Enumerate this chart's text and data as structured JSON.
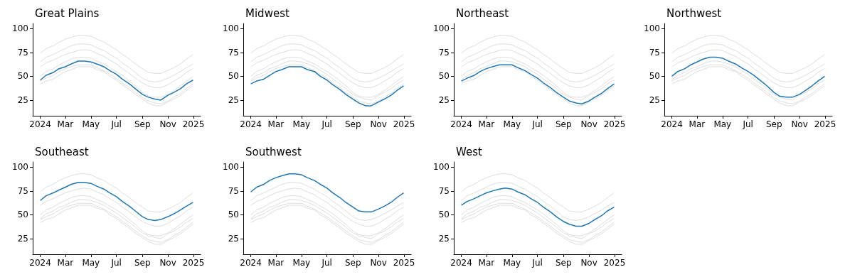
{
  "chart_data": [
    {
      "type": "line",
      "title": "Great Plains",
      "marker": "none",
      "xlim": [
        "2023-12-14",
        "2025-01-18"
      ],
      "ylim": [
        8.5,
        105.5
      ],
      "yticks": [
        25,
        50,
        75,
        100
      ],
      "xticks": [
        {
          "value": "2024-01-01",
          "label": "2024"
        },
        {
          "value": "2024-03-01",
          "label": "Mar"
        },
        {
          "value": "2024-05-01",
          "label": "May"
        },
        {
          "value": "2024-07-01",
          "label": "Jul"
        },
        {
          "value": "2024-09-01",
          "label": "Sep"
        },
        {
          "value": "2024-11-01",
          "label": "Nov"
        },
        {
          "value": "2025-01-01",
          "label": "2025"
        }
      ],
      "x": [
        "2024-01-01",
        "2024-01-15",
        "2024-02-01",
        "2024-02-15",
        "2024-03-01",
        "2024-03-15",
        "2024-04-01",
        "2024-04-15",
        "2024-05-01",
        "2024-05-15",
        "2024-06-01",
        "2024-06-15",
        "2024-07-01",
        "2024-07-15",
        "2024-08-01",
        "2024-08-15",
        "2024-09-01",
        "2024-09-15",
        "2024-10-01",
        "2024-10-15",
        "2024-11-01",
        "2024-11-15",
        "2024-12-01",
        "2024-12-15",
        "2024-12-31"
      ],
      "series": [
        {
          "color": "#dddddd",
          "values": [
            42,
            45,
            47,
            51,
            55,
            57,
            60,
            60,
            60,
            57,
            55,
            50,
            46,
            41,
            36,
            31,
            26,
            22,
            19,
            19,
            23,
            26,
            30,
            35,
            40
          ]
        },
        {
          "color": "#dddddd",
          "values": [
            45,
            48,
            51,
            55,
            58,
            60,
            62,
            62,
            62,
            59,
            56,
            52,
            48,
            43,
            38,
            33,
            28,
            24,
            22,
            21,
            24,
            28,
            32,
            37,
            42
          ]
        },
        {
          "color": "#dddddd",
          "values": [
            50,
            55,
            58,
            62,
            65,
            68,
            70,
            70,
            69,
            66,
            63,
            59,
            55,
            51,
            45,
            40,
            33,
            29,
            28,
            28,
            31,
            35,
            40,
            45,
            50
          ]
        },
        {
          "color": "#dddddd",
          "values": [
            65,
            70,
            73,
            76,
            79,
            82,
            84,
            84,
            83,
            80,
            77,
            73,
            69,
            64,
            59,
            54,
            48,
            45,
            44,
            45,
            48,
            51,
            55,
            59,
            63
          ]
        },
        {
          "color": "#dddddd",
          "values": [
            74,
            79,
            82,
            86,
            89,
            91,
            93,
            93,
            92,
            89,
            86,
            82,
            78,
            73,
            68,
            63,
            58,
            54,
            53,
            53,
            56,
            59,
            63,
            68,
            73
          ]
        },
        {
          "color": "#dddddd",
          "values": [
            60,
            64,
            67,
            70,
            73,
            75,
            77,
            78,
            77,
            74,
            71,
            67,
            63,
            58,
            53,
            48,
            43,
            40,
            38,
            38,
            41,
            45,
            49,
            54,
            58
          ]
        },
        {
          "color": "#1f77b4",
          "values": [
            46,
            51,
            54,
            58,
            60,
            63,
            66,
            66,
            65,
            63,
            60,
            56,
            52,
            47,
            42,
            37,
            31,
            28,
            26,
            25,
            30,
            33,
            37,
            42,
            46
          ]
        }
      ]
    },
    {
      "type": "line",
      "title": "Midwest",
      "marker": "none",
      "xlim": [
        "2023-12-14",
        "2025-01-18"
      ],
      "ylim": [
        8.5,
        105.5
      ],
      "yticks": [
        25,
        50,
        75,
        100
      ],
      "xticks": [
        {
          "value": "2024-01-01",
          "label": "2024"
        },
        {
          "value": "2024-03-01",
          "label": "Mar"
        },
        {
          "value": "2024-05-01",
          "label": "May"
        },
        {
          "value": "2024-07-01",
          "label": "Jul"
        },
        {
          "value": "2024-09-01",
          "label": "Sep"
        },
        {
          "value": "2024-11-01",
          "label": "Nov"
        },
        {
          "value": "2025-01-01",
          "label": "2025"
        }
      ],
      "x": [
        "2024-01-01",
        "2024-01-15",
        "2024-02-01",
        "2024-02-15",
        "2024-03-01",
        "2024-03-15",
        "2024-04-01",
        "2024-04-15",
        "2024-05-01",
        "2024-05-15",
        "2024-06-01",
        "2024-06-15",
        "2024-07-01",
        "2024-07-15",
        "2024-08-01",
        "2024-08-15",
        "2024-09-01",
        "2024-09-15",
        "2024-10-01",
        "2024-10-15",
        "2024-11-01",
        "2024-11-15",
        "2024-12-01",
        "2024-12-15",
        "2024-12-31"
      ],
      "series": [
        {
          "color": "#dddddd",
          "values": [
            46,
            51,
            54,
            58,
            60,
            63,
            66,
            66,
            65,
            63,
            60,
            56,
            52,
            47,
            42,
            37,
            31,
            28,
            26,
            25,
            30,
            33,
            37,
            42,
            46
          ]
        },
        {
          "color": "#dddddd",
          "values": [
            45,
            48,
            51,
            55,
            58,
            60,
            62,
            62,
            62,
            59,
            56,
            52,
            48,
            43,
            38,
            33,
            28,
            24,
            22,
            21,
            24,
            28,
            32,
            37,
            42
          ]
        },
        {
          "color": "#dddddd",
          "values": [
            50,
            55,
            58,
            62,
            65,
            68,
            70,
            70,
            69,
            66,
            63,
            59,
            55,
            51,
            45,
            40,
            33,
            29,
            28,
            28,
            31,
            35,
            40,
            45,
            50
          ]
        },
        {
          "color": "#dddddd",
          "values": [
            65,
            70,
            73,
            76,
            79,
            82,
            84,
            84,
            83,
            80,
            77,
            73,
            69,
            64,
            59,
            54,
            48,
            45,
            44,
            45,
            48,
            51,
            55,
            59,
            63
          ]
        },
        {
          "color": "#dddddd",
          "values": [
            74,
            79,
            82,
            86,
            89,
            91,
            93,
            93,
            92,
            89,
            86,
            82,
            78,
            73,
            68,
            63,
            58,
            54,
            53,
            53,
            56,
            59,
            63,
            68,
            73
          ]
        },
        {
          "color": "#dddddd",
          "values": [
            60,
            64,
            67,
            70,
            73,
            75,
            77,
            78,
            77,
            74,
            71,
            67,
            63,
            58,
            53,
            48,
            43,
            40,
            38,
            38,
            41,
            45,
            49,
            54,
            58
          ]
        },
        {
          "color": "#1f77b4",
          "values": [
            42,
            45,
            47,
            51,
            55,
            57,
            60,
            60,
            60,
            57,
            55,
            50,
            46,
            41,
            36,
            31,
            26,
            22,
            19,
            19,
            23,
            26,
            30,
            35,
            40
          ]
        }
      ]
    },
    {
      "type": "line",
      "title": "Northeast",
      "marker": "none",
      "xlim": [
        "2023-12-14",
        "2025-01-18"
      ],
      "ylim": [
        8.5,
        105.5
      ],
      "yticks": [
        25,
        50,
        75,
        100
      ],
      "xticks": [
        {
          "value": "2024-01-01",
          "label": "2024"
        },
        {
          "value": "2024-03-01",
          "label": "Mar"
        },
        {
          "value": "2024-05-01",
          "label": "May"
        },
        {
          "value": "2024-07-01",
          "label": "Jul"
        },
        {
          "value": "2024-09-01",
          "label": "Sep"
        },
        {
          "value": "2024-11-01",
          "label": "Nov"
        },
        {
          "value": "2025-01-01",
          "label": "2025"
        }
      ],
      "x": [
        "2024-01-01",
        "2024-01-15",
        "2024-02-01",
        "2024-02-15",
        "2024-03-01",
        "2024-03-15",
        "2024-04-01",
        "2024-04-15",
        "2024-05-01",
        "2024-05-15",
        "2024-06-01",
        "2024-06-15",
        "2024-07-01",
        "2024-07-15",
        "2024-08-01",
        "2024-08-15",
        "2024-09-01",
        "2024-09-15",
        "2024-10-01",
        "2024-10-15",
        "2024-11-01",
        "2024-11-15",
        "2024-12-01",
        "2024-12-15",
        "2024-12-31"
      ],
      "series": [
        {
          "color": "#dddddd",
          "values": [
            46,
            51,
            54,
            58,
            60,
            63,
            66,
            66,
            65,
            63,
            60,
            56,
            52,
            47,
            42,
            37,
            31,
            28,
            26,
            25,
            30,
            33,
            37,
            42,
            46
          ]
        },
        {
          "color": "#dddddd",
          "values": [
            42,
            45,
            47,
            51,
            55,
            57,
            60,
            60,
            60,
            57,
            55,
            50,
            46,
            41,
            36,
            31,
            26,
            22,
            19,
            19,
            23,
            26,
            30,
            35,
            40
          ]
        },
        {
          "color": "#dddddd",
          "values": [
            50,
            55,
            58,
            62,
            65,
            68,
            70,
            70,
            69,
            66,
            63,
            59,
            55,
            51,
            45,
            40,
            33,
            29,
            28,
            28,
            31,
            35,
            40,
            45,
            50
          ]
        },
        {
          "color": "#dddddd",
          "values": [
            65,
            70,
            73,
            76,
            79,
            82,
            84,
            84,
            83,
            80,
            77,
            73,
            69,
            64,
            59,
            54,
            48,
            45,
            44,
            45,
            48,
            51,
            55,
            59,
            63
          ]
        },
        {
          "color": "#dddddd",
          "values": [
            74,
            79,
            82,
            86,
            89,
            91,
            93,
            93,
            92,
            89,
            86,
            82,
            78,
            73,
            68,
            63,
            58,
            54,
            53,
            53,
            56,
            59,
            63,
            68,
            73
          ]
        },
        {
          "color": "#dddddd",
          "values": [
            60,
            64,
            67,
            70,
            73,
            75,
            77,
            78,
            77,
            74,
            71,
            67,
            63,
            58,
            53,
            48,
            43,
            40,
            38,
            38,
            41,
            45,
            49,
            54,
            58
          ]
        },
        {
          "color": "#1f77b4",
          "values": [
            45,
            48,
            51,
            55,
            58,
            60,
            62,
            62,
            62,
            59,
            56,
            52,
            48,
            43,
            38,
            33,
            28,
            24,
            22,
            21,
            24,
            28,
            32,
            37,
            42
          ]
        }
      ]
    },
    {
      "type": "line",
      "title": "Northwest",
      "marker": "none",
      "xlim": [
        "2023-12-14",
        "2025-01-18"
      ],
      "ylim": [
        8.5,
        105.5
      ],
      "yticks": [
        25,
        50,
        75,
        100
      ],
      "xticks": [
        {
          "value": "2024-01-01",
          "label": "2024"
        },
        {
          "value": "2024-03-01",
          "label": "Mar"
        },
        {
          "value": "2024-05-01",
          "label": "May"
        },
        {
          "value": "2024-07-01",
          "label": "Jul"
        },
        {
          "value": "2024-09-01",
          "label": "Sep"
        },
        {
          "value": "2024-11-01",
          "label": "Nov"
        },
        {
          "value": "2025-01-01",
          "label": "2025"
        }
      ],
      "x": [
        "2024-01-01",
        "2024-01-15",
        "2024-02-01",
        "2024-02-15",
        "2024-03-01",
        "2024-03-15",
        "2024-04-01",
        "2024-04-15",
        "2024-05-01",
        "2024-05-15",
        "2024-06-01",
        "2024-06-15",
        "2024-07-01",
        "2024-07-15",
        "2024-08-01",
        "2024-08-15",
        "2024-09-01",
        "2024-09-15",
        "2024-10-01",
        "2024-10-15",
        "2024-11-01",
        "2024-11-15",
        "2024-12-01",
        "2024-12-15",
        "2024-12-31"
      ],
      "series": [
        {
          "color": "#dddddd",
          "values": [
            46,
            51,
            54,
            58,
            60,
            63,
            66,
            66,
            65,
            63,
            60,
            56,
            52,
            47,
            42,
            37,
            31,
            28,
            26,
            25,
            30,
            33,
            37,
            42,
            46
          ]
        },
        {
          "color": "#dddddd",
          "values": [
            42,
            45,
            47,
            51,
            55,
            57,
            60,
            60,
            60,
            57,
            55,
            50,
            46,
            41,
            36,
            31,
            26,
            22,
            19,
            19,
            23,
            26,
            30,
            35,
            40
          ]
        },
        {
          "color": "#dddddd",
          "values": [
            45,
            48,
            51,
            55,
            58,
            60,
            62,
            62,
            62,
            59,
            56,
            52,
            48,
            43,
            38,
            33,
            28,
            24,
            22,
            21,
            24,
            28,
            32,
            37,
            42
          ]
        },
        {
          "color": "#dddddd",
          "values": [
            65,
            70,
            73,
            76,
            79,
            82,
            84,
            84,
            83,
            80,
            77,
            73,
            69,
            64,
            59,
            54,
            48,
            45,
            44,
            45,
            48,
            51,
            55,
            59,
            63
          ]
        },
        {
          "color": "#dddddd",
          "values": [
            74,
            79,
            82,
            86,
            89,
            91,
            93,
            93,
            92,
            89,
            86,
            82,
            78,
            73,
            68,
            63,
            58,
            54,
            53,
            53,
            56,
            59,
            63,
            68,
            73
          ]
        },
        {
          "color": "#dddddd",
          "values": [
            60,
            64,
            67,
            70,
            73,
            75,
            77,
            78,
            77,
            74,
            71,
            67,
            63,
            58,
            53,
            48,
            43,
            40,
            38,
            38,
            41,
            45,
            49,
            54,
            58
          ]
        },
        {
          "color": "#1f77b4",
          "values": [
            50,
            55,
            58,
            62,
            65,
            68,
            70,
            70,
            69,
            66,
            63,
            59,
            55,
            51,
            45,
            40,
            33,
            29,
            28,
            28,
            31,
            35,
            40,
            45,
            50
          ]
        }
      ]
    },
    {
      "type": "line",
      "title": "Southeast",
      "marker": "none",
      "xlim": [
        "2023-12-14",
        "2025-01-18"
      ],
      "ylim": [
        8.5,
        105.5
      ],
      "yticks": [
        25,
        50,
        75,
        100
      ],
      "xticks": [
        {
          "value": "2024-01-01",
          "label": "2024"
        },
        {
          "value": "2024-03-01",
          "label": "Mar"
        },
        {
          "value": "2024-05-01",
          "label": "May"
        },
        {
          "value": "2024-07-01",
          "label": "Jul"
        },
        {
          "value": "2024-09-01",
          "label": "Sep"
        },
        {
          "value": "2024-11-01",
          "label": "Nov"
        },
        {
          "value": "2025-01-01",
          "label": "2025"
        }
      ],
      "x": [
        "2024-01-01",
        "2024-01-15",
        "2024-02-01",
        "2024-02-15",
        "2024-03-01",
        "2024-03-15",
        "2024-04-01",
        "2024-04-15",
        "2024-05-01",
        "2024-05-15",
        "2024-06-01",
        "2024-06-15",
        "2024-07-01",
        "2024-07-15",
        "2024-08-01",
        "2024-08-15",
        "2024-09-01",
        "2024-09-15",
        "2024-10-01",
        "2024-10-15",
        "2024-11-01",
        "2024-11-15",
        "2024-12-01",
        "2024-12-15",
        "2024-12-31"
      ],
      "series": [
        {
          "color": "#dddddd",
          "values": [
            46,
            51,
            54,
            58,
            60,
            63,
            66,
            66,
            65,
            63,
            60,
            56,
            52,
            47,
            42,
            37,
            31,
            28,
            26,
            25,
            30,
            33,
            37,
            42,
            46
          ]
        },
        {
          "color": "#dddddd",
          "values": [
            42,
            45,
            47,
            51,
            55,
            57,
            60,
            60,
            60,
            57,
            55,
            50,
            46,
            41,
            36,
            31,
            26,
            22,
            19,
            19,
            23,
            26,
            30,
            35,
            40
          ]
        },
        {
          "color": "#dddddd",
          "values": [
            45,
            48,
            51,
            55,
            58,
            60,
            62,
            62,
            62,
            59,
            56,
            52,
            48,
            43,
            38,
            33,
            28,
            24,
            22,
            21,
            24,
            28,
            32,
            37,
            42
          ]
        },
        {
          "color": "#dddddd",
          "values": [
            50,
            55,
            58,
            62,
            65,
            68,
            70,
            70,
            69,
            66,
            63,
            59,
            55,
            51,
            45,
            40,
            33,
            29,
            28,
            28,
            31,
            35,
            40,
            45,
            50
          ]
        },
        {
          "color": "#dddddd",
          "values": [
            74,
            79,
            82,
            86,
            89,
            91,
            93,
            93,
            92,
            89,
            86,
            82,
            78,
            73,
            68,
            63,
            58,
            54,
            53,
            53,
            56,
            59,
            63,
            68,
            73
          ]
        },
        {
          "color": "#dddddd",
          "values": [
            60,
            64,
            67,
            70,
            73,
            75,
            77,
            78,
            77,
            74,
            71,
            67,
            63,
            58,
            53,
            48,
            43,
            40,
            38,
            38,
            41,
            45,
            49,
            54,
            58
          ]
        },
        {
          "color": "#1f77b4",
          "values": [
            65,
            70,
            73,
            76,
            79,
            82,
            84,
            84,
            83,
            80,
            77,
            73,
            69,
            64,
            59,
            54,
            48,
            45,
            44,
            45,
            48,
            51,
            55,
            59,
            63
          ]
        }
      ]
    },
    {
      "type": "line",
      "title": "Southwest",
      "marker": "none",
      "xlim": [
        "2023-12-14",
        "2025-01-18"
      ],
      "ylim": [
        8.5,
        105.5
      ],
      "yticks": [
        25,
        50,
        75,
        100
      ],
      "xticks": [
        {
          "value": "2024-01-01",
          "label": "2024"
        },
        {
          "value": "2024-03-01",
          "label": "Mar"
        },
        {
          "value": "2024-05-01",
          "label": "May"
        },
        {
          "value": "2024-07-01",
          "label": "Jul"
        },
        {
          "value": "2024-09-01",
          "label": "Sep"
        },
        {
          "value": "2024-11-01",
          "label": "Nov"
        },
        {
          "value": "2025-01-01",
          "label": "2025"
        }
      ],
      "x": [
        "2024-01-01",
        "2024-01-15",
        "2024-02-01",
        "2024-02-15",
        "2024-03-01",
        "2024-03-15",
        "2024-04-01",
        "2024-04-15",
        "2024-05-01",
        "2024-05-15",
        "2024-06-01",
        "2024-06-15",
        "2024-07-01",
        "2024-07-15",
        "2024-08-01",
        "2024-08-15",
        "2024-09-01",
        "2024-09-15",
        "2024-10-01",
        "2024-10-15",
        "2024-11-01",
        "2024-11-15",
        "2024-12-01",
        "2024-12-15",
        "2024-12-31"
      ],
      "series": [
        {
          "color": "#dddddd",
          "values": [
            46,
            51,
            54,
            58,
            60,
            63,
            66,
            66,
            65,
            63,
            60,
            56,
            52,
            47,
            42,
            37,
            31,
            28,
            26,
            25,
            30,
            33,
            37,
            42,
            46
          ]
        },
        {
          "color": "#dddddd",
          "values": [
            42,
            45,
            47,
            51,
            55,
            57,
            60,
            60,
            60,
            57,
            55,
            50,
            46,
            41,
            36,
            31,
            26,
            22,
            19,
            19,
            23,
            26,
            30,
            35,
            40
          ]
        },
        {
          "color": "#dddddd",
          "values": [
            45,
            48,
            51,
            55,
            58,
            60,
            62,
            62,
            62,
            59,
            56,
            52,
            48,
            43,
            38,
            33,
            28,
            24,
            22,
            21,
            24,
            28,
            32,
            37,
            42
          ]
        },
        {
          "color": "#dddddd",
          "values": [
            50,
            55,
            58,
            62,
            65,
            68,
            70,
            70,
            69,
            66,
            63,
            59,
            55,
            51,
            45,
            40,
            33,
            29,
            28,
            28,
            31,
            35,
            40,
            45,
            50
          ]
        },
        {
          "color": "#dddddd",
          "values": [
            65,
            70,
            73,
            76,
            79,
            82,
            84,
            84,
            83,
            80,
            77,
            73,
            69,
            64,
            59,
            54,
            48,
            45,
            44,
            45,
            48,
            51,
            55,
            59,
            63
          ]
        },
        {
          "color": "#dddddd",
          "values": [
            60,
            64,
            67,
            70,
            73,
            75,
            77,
            78,
            77,
            74,
            71,
            67,
            63,
            58,
            53,
            48,
            43,
            40,
            38,
            38,
            41,
            45,
            49,
            54,
            58
          ]
        },
        {
          "color": "#1f77b4",
          "values": [
            74,
            79,
            82,
            86,
            89,
            91,
            93,
            93,
            92,
            89,
            86,
            82,
            78,
            73,
            68,
            63,
            58,
            54,
            53,
            53,
            56,
            59,
            63,
            68,
            73
          ]
        }
      ]
    },
    {
      "type": "line",
      "title": "West",
      "marker": "none",
      "xlim": [
        "2023-12-14",
        "2025-01-18"
      ],
      "ylim": [
        8.5,
        105.5
      ],
      "yticks": [
        25,
        50,
        75,
        100
      ],
      "xticks": [
        {
          "value": "2024-01-01",
          "label": "2024"
        },
        {
          "value": "2024-03-01",
          "label": "Mar"
        },
        {
          "value": "2024-05-01",
          "label": "May"
        },
        {
          "value": "2024-07-01",
          "label": "Jul"
        },
        {
          "value": "2024-09-01",
          "label": "Sep"
        },
        {
          "value": "2024-11-01",
          "label": "Nov"
        },
        {
          "value": "2025-01-01",
          "label": "2025"
        }
      ],
      "x": [
        "2024-01-01",
        "2024-01-15",
        "2024-02-01",
        "2024-02-15",
        "2024-03-01",
        "2024-03-15",
        "2024-04-01",
        "2024-04-15",
        "2024-05-01",
        "2024-05-15",
        "2024-06-01",
        "2024-06-15",
        "2024-07-01",
        "2024-07-15",
        "2024-08-01",
        "2024-08-15",
        "2024-09-01",
        "2024-09-15",
        "2024-10-01",
        "2024-10-15",
        "2024-11-01",
        "2024-11-15",
        "2024-12-01",
        "2024-12-15",
        "2024-12-31"
      ],
      "series": [
        {
          "color": "#dddddd",
          "values": [
            46,
            51,
            54,
            58,
            60,
            63,
            66,
            66,
            65,
            63,
            60,
            56,
            52,
            47,
            42,
            37,
            31,
            28,
            26,
            25,
            30,
            33,
            37,
            42,
            46
          ]
        },
        {
          "color": "#dddddd",
          "values": [
            42,
            45,
            47,
            51,
            55,
            57,
            60,
            60,
            60,
            57,
            55,
            50,
            46,
            41,
            36,
            31,
            26,
            22,
            19,
            19,
            23,
            26,
            30,
            35,
            40
          ]
        },
        {
          "color": "#dddddd",
          "values": [
            45,
            48,
            51,
            55,
            58,
            60,
            62,
            62,
            62,
            59,
            56,
            52,
            48,
            43,
            38,
            33,
            28,
            24,
            22,
            21,
            24,
            28,
            32,
            37,
            42
          ]
        },
        {
          "color": "#dddddd",
          "values": [
            50,
            55,
            58,
            62,
            65,
            68,
            70,
            70,
            69,
            66,
            63,
            59,
            55,
            51,
            45,
            40,
            33,
            29,
            28,
            28,
            31,
            35,
            40,
            45,
            50
          ]
        },
        {
          "color": "#dddddd",
          "values": [
            65,
            70,
            73,
            76,
            79,
            82,
            84,
            84,
            83,
            80,
            77,
            73,
            69,
            64,
            59,
            54,
            48,
            45,
            44,
            45,
            48,
            51,
            55,
            59,
            63
          ]
        },
        {
          "color": "#dddddd",
          "values": [
            74,
            79,
            82,
            86,
            89,
            91,
            93,
            93,
            92,
            89,
            86,
            82,
            78,
            73,
            68,
            63,
            58,
            54,
            53,
            53,
            56,
            59,
            63,
            68,
            73
          ]
        },
        {
          "color": "#1f77b4",
          "values": [
            60,
            64,
            67,
            70,
            73,
            75,
            77,
            78,
            77,
            74,
            71,
            67,
            63,
            58,
            53,
            48,
            43,
            40,
            38,
            38,
            41,
            45,
            49,
            54,
            58
          ]
        }
      ]
    }
  ]
}
